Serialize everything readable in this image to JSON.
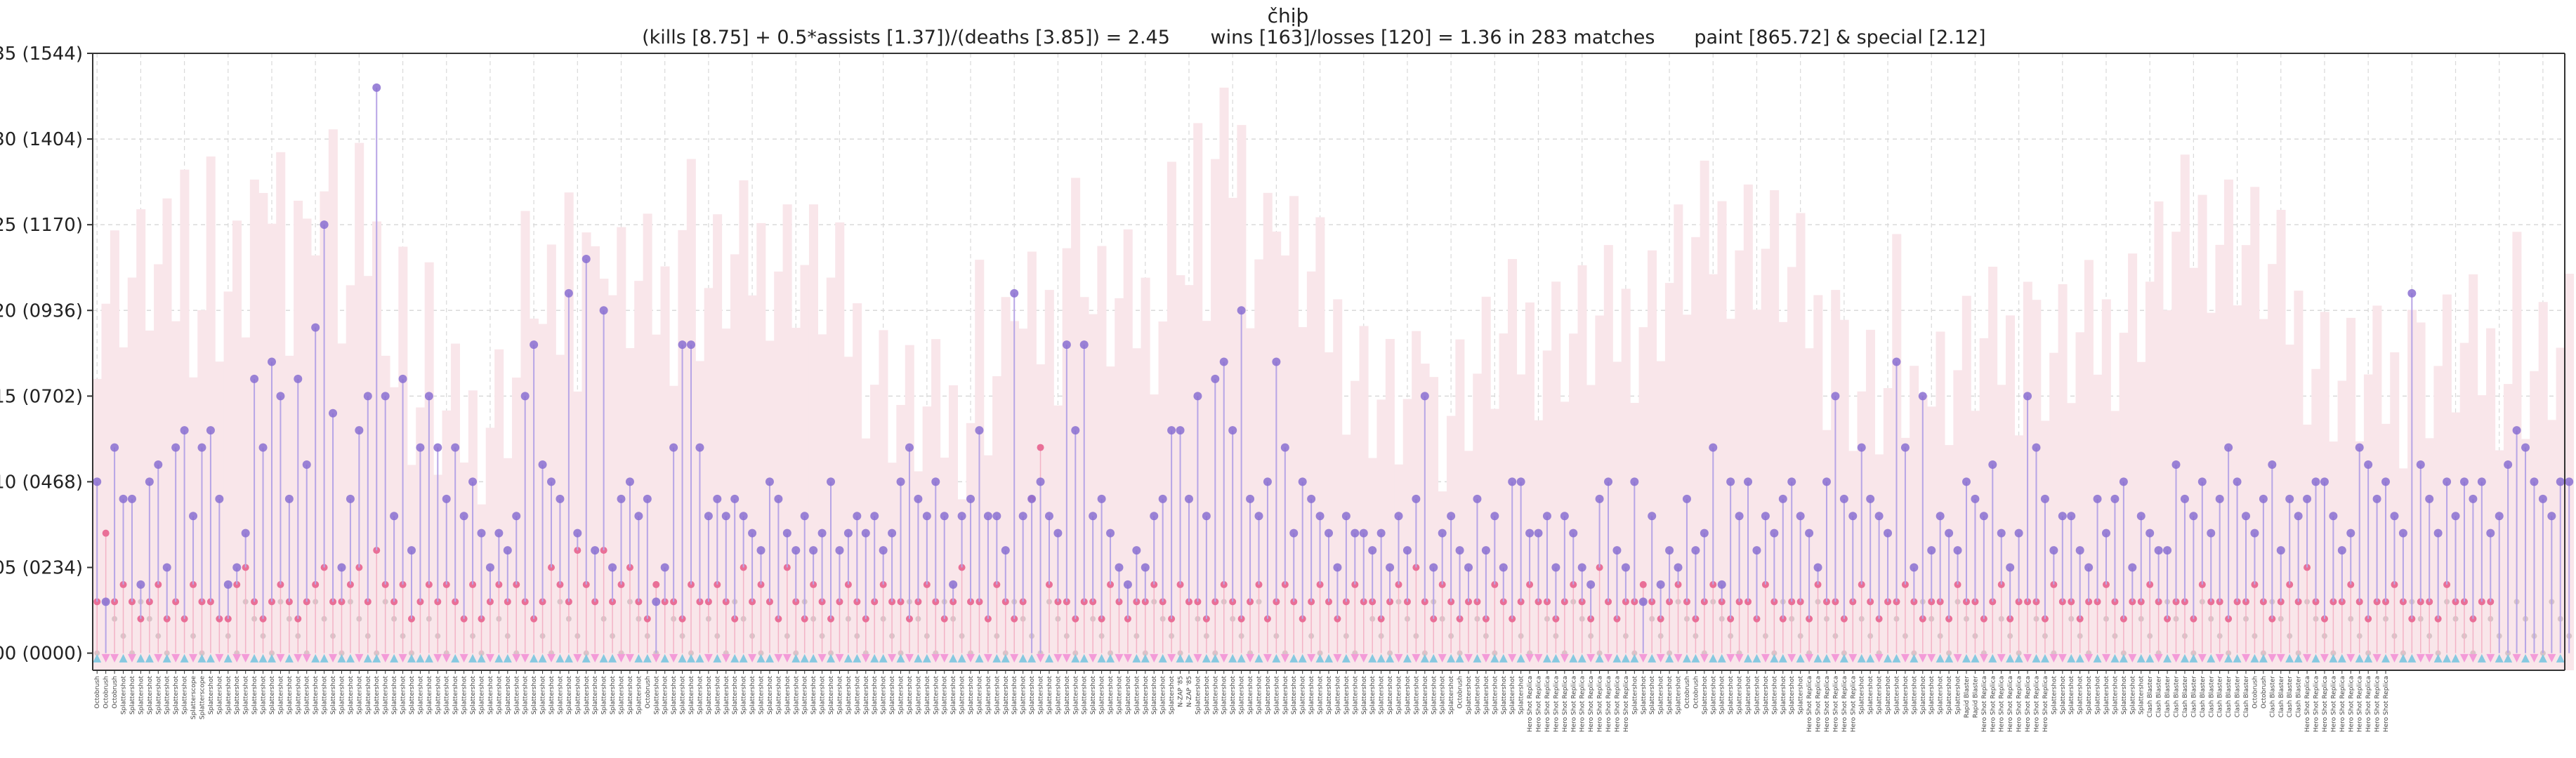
{
  "chart_data": {
    "type": "line",
    "title": "čhịþ",
    "subtitle": {
      "kda": "(kills [8.75] + 0.5*assists [1.37])/(deaths [3.85]) = 2.45",
      "winloss": "wins [163]/losses [120] = 1.36 in 283 matches",
      "paint": "paint [865.72] & special [2.12]"
    },
    "ylim": [
      -1,
      35
    ],
    "y_ticks": [
      {
        "value": 0,
        "label": "00 (0000)"
      },
      {
        "value": 5,
        "label": "05 (0234)"
      },
      {
        "value": 10,
        "label": "10 (0468)"
      },
      {
        "value": 15,
        "label": "15 (0702)"
      },
      {
        "value": 20,
        "label": "20 (0936)"
      },
      {
        "value": 25,
        "label": "25 (1170)"
      },
      {
        "value": 30,
        "label": "30 (1404)"
      },
      {
        "value": 35,
        "label": "35 (1544)"
      }
    ],
    "grid": true,
    "match_count": 283,
    "colors": {
      "paint_bar": "#f9e6ea",
      "kills": "#8a6fd1",
      "kills_line": "#b7a5e6",
      "deaths": "#e96f97",
      "assists": "#d8c4c8",
      "win": "#87c9e0",
      "loss": "#f39bd8",
      "grid": "#d9d9d9",
      "axis": "#333333"
    },
    "weapon_segments": [
      {
        "label": "Octobrush",
        "count": 3
      },
      {
        "label": "Splattershot",
        "count": 8
      },
      {
        "label": "Splatterscope",
        "count": 2
      },
      {
        "label": "Splattershot",
        "count": 50
      },
      {
        "label": "Octobrush",
        "count": 1
      },
      {
        "label": "Splattershot",
        "count": 60
      },
      {
        "label": "N-ZAP '85",
        "count": 2
      },
      {
        "label": "Splattershot",
        "count": 30
      },
      {
        "label": "Octobrush",
        "count": 1
      },
      {
        "label": "Splattershot",
        "count": 7
      },
      {
        "label": "Hero Shot Replica",
        "count": 12
      },
      {
        "label": "Splattershot",
        "count": 6
      },
      {
        "label": "Octobrush",
        "count": 2
      },
      {
        "label": "Splattershot",
        "count": 12
      },
      {
        "label": "Hero Shot Replica",
        "count": 6
      },
      {
        "label": "Splattershot",
        "count": 12
      },
      {
        "label": "Rapid Blaster",
        "count": 2
      },
      {
        "label": "Hero Shot Replica",
        "count": 8
      },
      {
        "label": "Splattershot",
        "count": 11
      },
      {
        "label": "Clash Blaster",
        "count": 12
      },
      {
        "label": "Octobrush",
        "count": 2
      },
      {
        "label": "Clash Blaster",
        "count": 4
      },
      {
        "label": "Hero Shot Replica",
        "count": 10
      }
    ],
    "kills": [
      10,
      3,
      12,
      9,
      9,
      4,
      10,
      11,
      5,
      12,
      13,
      8,
      12,
      13,
      9,
      4,
      5,
      7,
      16,
      12,
      17,
      15,
      9,
      16,
      11,
      19,
      25,
      14,
      5,
      9,
      13,
      15,
      33,
      15,
      8,
      16,
      6,
      12,
      15,
      12,
      9,
      12,
      8,
      10,
      7,
      5,
      7,
      6,
      8,
      15,
      18,
      11,
      10,
      9,
      21,
      7,
      23,
      6,
      20,
      5,
      9,
      10,
      8,
      9,
      3,
      5,
      12,
      18,
      18,
      12,
      8,
      9,
      8,
      9,
      8,
      7,
      6,
      10,
      9,
      7,
      6,
      8,
      6,
      7,
      10,
      6,
      7,
      8,
      7,
      8,
      6,
      7,
      10,
      12,
      9,
      8,
      10,
      8,
      4,
      8,
      9,
      13,
      8,
      8,
      6,
      21,
      8,
      9,
      10,
      8,
      7,
      18,
      13,
      18,
      8,
      9,
      7,
      5,
      4,
      6,
      5,
      8,
      9,
      13,
      13,
      9,
      15,
      8,
      16,
      17,
      13,
      20,
      9,
      8,
      10,
      17,
      12,
      7,
      10,
      9,
      8,
      7,
      5,
      8,
      7,
      7,
      6,
      7,
      5,
      8,
      6,
      9,
      15,
      5,
      7,
      8,
      6,
      5,
      9,
      6,
      8,
      5,
      10,
      10,
      7,
      7,
      8,
      5,
      8,
      7,
      5,
      4,
      9,
      10,
      6,
      5,
      10,
      3,
      8,
      4,
      6,
      5,
      9,
      6,
      7,
      12,
      4,
      10,
      8,
      10,
      6,
      8,
      7,
      9,
      10,
      8,
      7,
      5,
      10,
      15,
      9,
      8,
      12,
      9,
      8,
      7,
      17,
      12,
      5,
      15,
      6,
      8,
      7,
      6,
      10,
      9,
      8,
      11,
      7,
      5,
      7,
      15,
      12,
      9,
      6,
      8,
      8,
      6,
      5,
      9,
      7,
      9,
      10,
      5,
      8,
      7,
      6,
      6,
      11,
      9,
      8,
      10,
      7,
      9,
      12,
      10,
      8,
      7,
      9,
      11,
      6,
      9,
      8,
      9,
      10,
      10,
      8,
      6,
      7,
      12,
      11,
      9,
      10,
      8,
      7,
      21,
      11,
      9,
      7,
      10,
      8,
      10,
      9,
      10,
      7,
      8,
      11,
      13,
      12,
      10,
      9,
      8,
      10,
      10
    ],
    "deaths": [
      3,
      7,
      3,
      4,
      3,
      2,
      3,
      4,
      2,
      3,
      2,
      4,
      3,
      3,
      2,
      2,
      4,
      5,
      3,
      2,
      3,
      4,
      3,
      2,
      3,
      4,
      5,
      3,
      3,
      4,
      5,
      3,
      6,
      4,
      3,
      4,
      2,
      3,
      4,
      3,
      4,
      3,
      2,
      4,
      2,
      3,
      4,
      3,
      4,
      3,
      2,
      3,
      5,
      4,
      3,
      6,
      4,
      3,
      6,
      3,
      4,
      5,
      3,
      2,
      4,
      3,
      3,
      2,
      4,
      3,
      3,
      4,
      3,
      2,
      5,
      3,
      4,
      3,
      2,
      5,
      3,
      2,
      4,
      3,
      2,
      3,
      4,
      3,
      2,
      3,
      4,
      3,
      3,
      2,
      3,
      4,
      3,
      2,
      3,
      5,
      3,
      3,
      2,
      4,
      3,
      2,
      3,
      9,
      12,
      4,
      3,
      3,
      2,
      3,
      3,
      2,
      4,
      3,
      2,
      3,
      3,
      4,
      3,
      2,
      4,
      3,
      3,
      2,
      3,
      4,
      3,
      2,
      3,
      4,
      2,
      3,
      4,
      3,
      2,
      3,
      4,
      3,
      2,
      3,
      4,
      3,
      3,
      2,
      3,
      4,
      3,
      5,
      3,
      2,
      4,
      3,
      2,
      3,
      3,
      2,
      4,
      3,
      2,
      3,
      4,
      3,
      3,
      2,
      3,
      4,
      3,
      2,
      5,
      3,
      2,
      3,
      3,
      4,
      3,
      2,
      3,
      4,
      3,
      2,
      3,
      4,
      3,
      2,
      3,
      3,
      2,
      4,
      3,
      2,
      3,
      3,
      2,
      4,
      3,
      3,
      2,
      3,
      4,
      3,
      2,
      3,
      3,
      4,
      3,
      2,
      3,
      3,
      2,
      4,
      3,
      3,
      2,
      3,
      4,
      2,
      3,
      3,
      3,
      2,
      4,
      3,
      3,
      2,
      3,
      3,
      4,
      3,
      2,
      3,
      3,
      4,
      3,
      2,
      3,
      3,
      2,
      4,
      3,
      3,
      2,
      3,
      3,
      4,
      3,
      2,
      3,
      4,
      3,
      5,
      3,
      2,
      3,
      3,
      4,
      3,
      2,
      3,
      3,
      4,
      3,
      2,
      3,
      3,
      2,
      4,
      3,
      3,
      2,
      3,
      3
    ],
    "results": "WLLWLWWLWLWLWWLWLLWWWLWLLWWLWWLWWLWLWWWLLWLWWLWWLLWWLWWLWLWWLLWWLWLWWWLWLWWLWWLLWWWLWLWWLWWLWLWWLLWWLWLWWLWWLWLLWWLWWLLWWLWLWWLWWLWWLWLWLWWLWWLWLLWWWLWLWWLWWLWLWWLWLLWWLWWLWLWWWLWLWLWWLWWLLWWLWWLWLWWLWLWWLWWLWLLWWLWWLWLWWLWWLLWWLWLWWLWWLWLWWLWLWWLWWLLWWLWLWWLWWLWLWWLLWW"
  }
}
